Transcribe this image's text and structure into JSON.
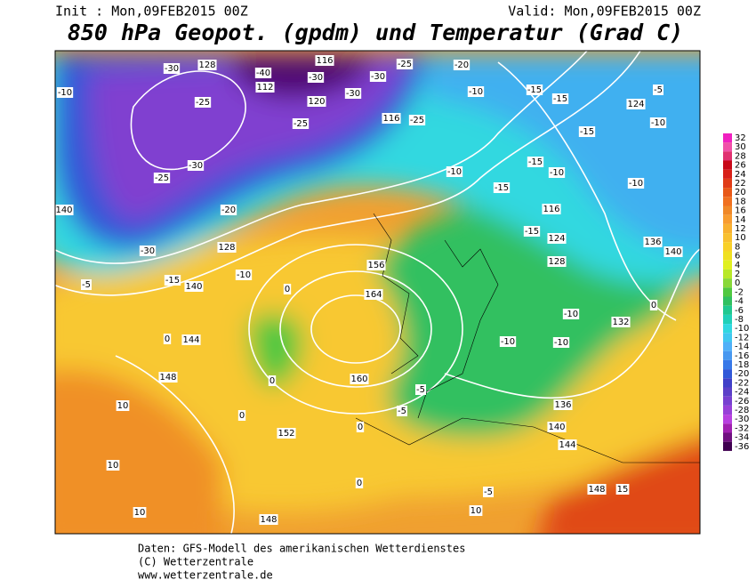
{
  "header": {
    "init": "Init : Mon,09FEB2015 00Z",
    "valid": "Valid: Mon,09FEB2015 00Z",
    "title": "850 hPa Geopot. (gpdm) und Temperatur (Grad C)"
  },
  "colorbar": {
    "ticks": [
      32,
      30,
      28,
      26,
      24,
      22,
      20,
      18,
      16,
      14,
      12,
      10,
      8,
      6,
      4,
      2,
      0,
      -2,
      -4,
      -6,
      -8,
      -10,
      -12,
      -14,
      -16,
      -18,
      -20,
      -22,
      -24,
      -26,
      -28,
      -30,
      -32,
      -34,
      -36
    ],
    "colors": [
      "#f020c0",
      "#f050a8",
      "#e03070",
      "#c80818",
      "#d82018",
      "#e03c18",
      "#e85818",
      "#f07020",
      "#f08828",
      "#f89c30",
      "#f8b030",
      "#f8c030",
      "#f8d028",
      "#f0e020",
      "#e0f020",
      "#b8e828",
      "#88d838",
      "#50c840",
      "#30c060",
      "#20c890",
      "#20d0b8",
      "#30d8e0",
      "#40c8f0",
      "#50b0f8",
      "#4898f0",
      "#3878e8",
      "#3058d8",
      "#4040c8",
      "#5c40c8",
      "#7840d0",
      "#9840d8",
      "#b840e0",
      "#a020b0",
      "#701080",
      "#400050"
    ]
  },
  "map_labels": [
    "-30",
    "128",
    "-40",
    "116",
    "-30",
    "-25",
    "-30",
    "-10",
    "-25",
    "112",
    "-30",
    "120",
    "-25",
    "116",
    "-25",
    "-20",
    "-10",
    "-15",
    "-15",
    "124",
    "-5",
    "-10",
    "-25",
    "-30",
    "140",
    "-20",
    "128",
    "-30",
    "-15",
    "140",
    "-10",
    "-5",
    "0",
    "144",
    "148",
    "10",
    "10",
    "10",
    "148",
    "152",
    "160",
    "164",
    "156",
    "0",
    "-10",
    "-15",
    "-15",
    "-10",
    "116",
    "124",
    "-15",
    "128",
    "-10",
    "132",
    "136",
    "140",
    "144",
    "148",
    "15",
    "-10",
    "-10",
    "-5",
    "10",
    "0",
    "0",
    "0",
    "0",
    "-5",
    "-5",
    "136",
    "140",
    "-10",
    "-15",
    "0"
  ],
  "footer": [
    "Daten: GFS-Modell des amerikanischen Wetterdienstes",
    "(C) Wetterzentrale",
    "www.wetterzentrale.de"
  ]
}
